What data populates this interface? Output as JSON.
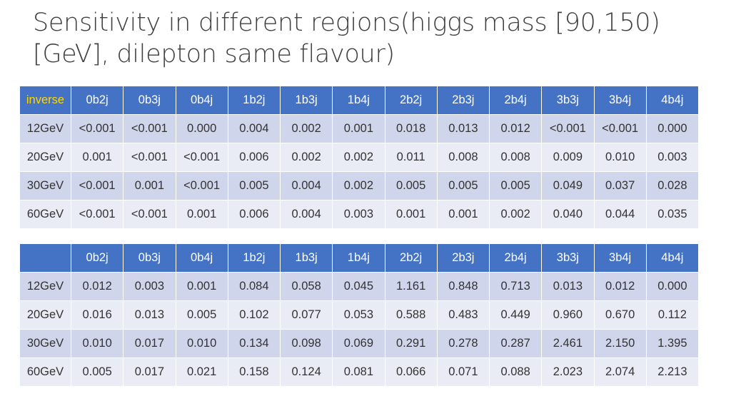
{
  "title": "Sensitivity in different regions(higgs mass [90,150)[GeV], dilepton same flavour)",
  "columns": [
    "0b2j",
    "0b3j",
    "0b4j",
    "1b2j",
    "1b3j",
    "1b4j",
    "2b2j",
    "2b3j",
    "2b4j",
    "3b3j",
    "3b4j",
    "4b4j"
  ],
  "table1": {
    "corner": "inverse",
    "rows": [
      {
        "label": "12GeV",
        "values": [
          "<0.001",
          "<0.001",
          "0.000",
          "0.004",
          "0.002",
          "0.001",
          "0.018",
          "0.013",
          "0.012",
          "<0.001",
          "<0.001",
          "0.000"
        ]
      },
      {
        "label": "20GeV",
        "values": [
          "0.001",
          "<0.001",
          "<0.001",
          "0.006",
          "0.002",
          "0.002",
          "0.011",
          "0.008",
          "0.008",
          "0.009",
          "0.010",
          "0.003"
        ]
      },
      {
        "label": "30GeV",
        "values": [
          "<0.001",
          "0.001",
          "<0.001",
          "0.005",
          "0.004",
          "0.002",
          "0.005",
          "0.005",
          "0.005",
          "0.049",
          "0.037",
          "0.028"
        ]
      },
      {
        "label": "60GeV",
        "values": [
          "<0.001",
          "<0.001",
          "0.001",
          "0.006",
          "0.004",
          "0.003",
          "0.001",
          "0.001",
          "0.002",
          "0.040",
          "0.044",
          "0.035"
        ]
      }
    ]
  },
  "table2": {
    "corner": "",
    "rows": [
      {
        "label": "12GeV",
        "values": [
          "0.012",
          "0.003",
          "0.001",
          "0.084",
          "0.058",
          "0.045",
          "1.161",
          "0.848",
          "0.713",
          "0.013",
          "0.012",
          "0.000"
        ]
      },
      {
        "label": "20GeV",
        "values": [
          "0.016",
          "0.013",
          "0.005",
          "0.102",
          "0.077",
          "0.053",
          "0.588",
          "0.483",
          "0.449",
          "0.960",
          "0.670",
          "0.112"
        ]
      },
      {
        "label": "30GeV",
        "values": [
          "0.010",
          "0.017",
          "0.010",
          "0.134",
          "0.098",
          "0.069",
          "0.291",
          "0.278",
          "0.287",
          "2.461",
          "2.150",
          "1.395"
        ]
      },
      {
        "label": "60GeV",
        "values": [
          "0.005",
          "0.017",
          "0.021",
          "0.158",
          "0.124",
          "0.081",
          "0.066",
          "0.071",
          "0.088",
          "2.023",
          "2.074",
          "2.213"
        ]
      }
    ]
  },
  "colors": {
    "header_bg": "#4472c4",
    "header_text": "#ffffff",
    "inverse_text": "#ffd800",
    "row_dark": "#cfd5ea",
    "row_light": "#e9ebf5",
    "title_text": "#404040"
  }
}
